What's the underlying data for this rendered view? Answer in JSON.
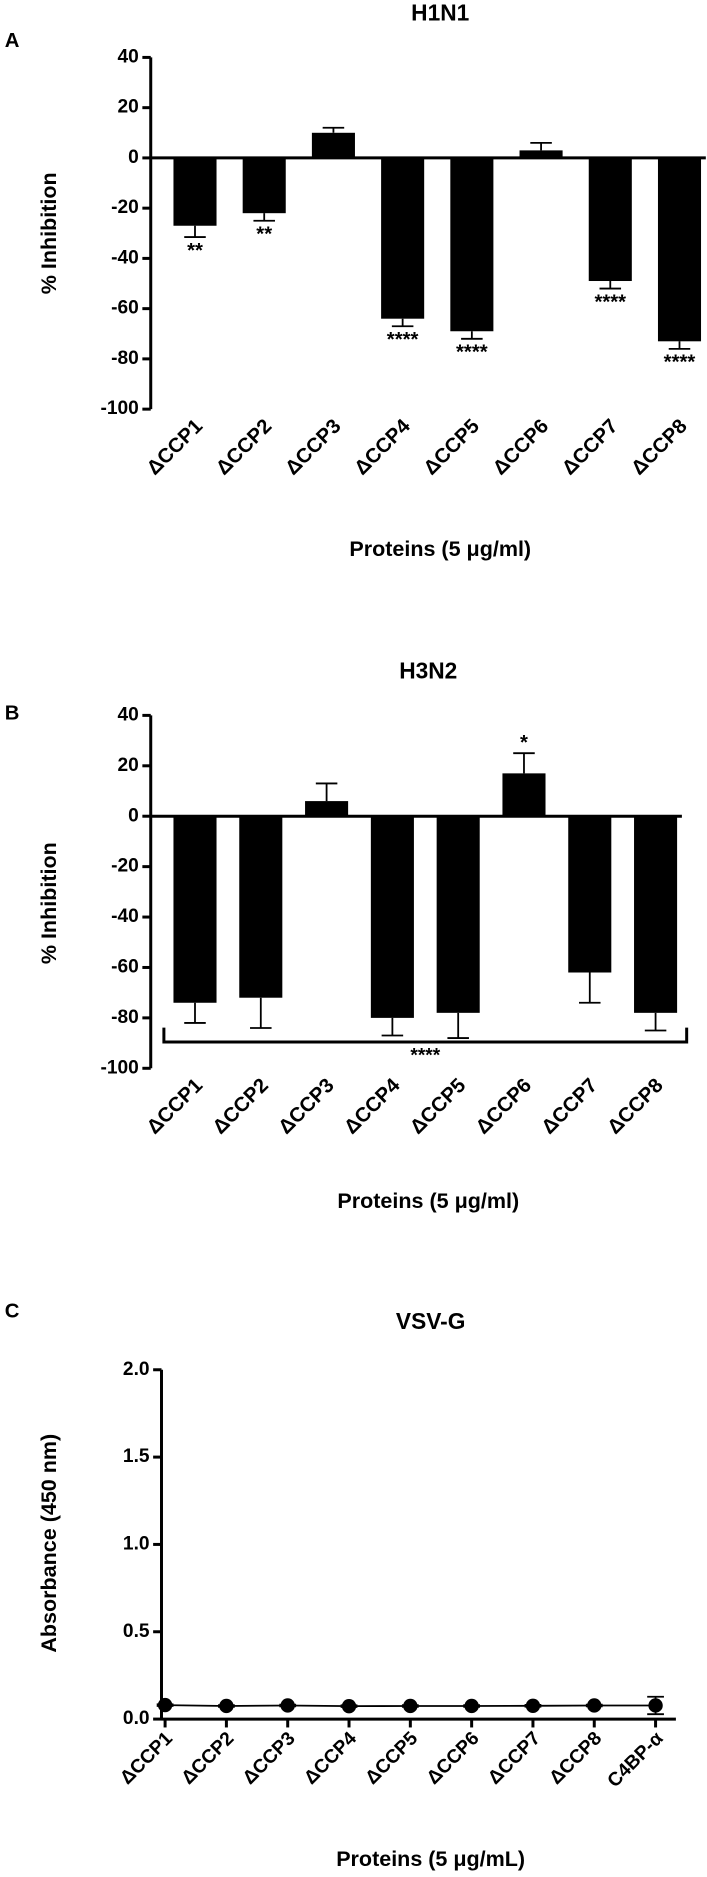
{
  "chart_data": [
    {
      "type": "bar",
      "panel_label": "A",
      "title": "H1N1",
      "categories": [
        "ΔCCP1",
        "ΔCCP2",
        "ΔCCP3",
        "ΔCCP4",
        "ΔCCP5",
        "ΔCCP6",
        "ΔCCP7",
        "ΔCCP8"
      ],
      "values": [
        -27,
        -22,
        10,
        -64,
        -69,
        3,
        -49,
        -73
      ],
      "errors": [
        4.5,
        3,
        2,
        3,
        3,
        3,
        3,
        3
      ],
      "annotations": [
        "**",
        "**",
        null,
        "****",
        "****",
        null,
        "****",
        "****"
      ],
      "color": "#000000",
      "ylim": [
        -100,
        40
      ],
      "yticks": [
        -100,
        -80,
        -60,
        -40,
        -20,
        0,
        20,
        40
      ],
      "xlabel": "Proteins (5 μg/ml)",
      "ylabel": "% Inhibition"
    },
    {
      "type": "bar",
      "panel_label": "B",
      "title": "H3N2",
      "categories": [
        "ΔCCP1",
        "ΔCCP2",
        "ΔCCP3",
        "ΔCCP4",
        "ΔCCP5",
        "ΔCCP6",
        "ΔCCP7",
        "ΔCCP8"
      ],
      "values": [
        -74,
        -72,
        6,
        -80,
        -78,
        17,
        -62,
        -78
      ],
      "errors": [
        8,
        12,
        7,
        7,
        10,
        8,
        12,
        7
      ],
      "annotations": [
        null,
        null,
        null,
        null,
        null,
        "*",
        null,
        null
      ],
      "bracket_label": "****",
      "color": "#000000",
      "ylim": [
        -100,
        40
      ],
      "yticks": [
        -100,
        -80,
        -60,
        -40,
        -20,
        0,
        20,
        40
      ],
      "xlabel": "Proteins (5 μg/ml)",
      "ylabel": "% Inhibition"
    },
    {
      "type": "line",
      "panel_label": "C",
      "title": "VSV-G",
      "categories": [
        "ΔCCP1",
        "ΔCCP2",
        "ΔCCP3",
        "ΔCCP4",
        "ΔCCP5",
        "ΔCCP6",
        "ΔCCP7",
        "ΔCCP8",
        "C4BP-α"
      ],
      "values": [
        0.08,
        0.075,
        0.078,
        0.074,
        0.075,
        0.075,
        0.076,
        0.078,
        0.078
      ],
      "errors": [
        0.005,
        0.005,
        0.005,
        0.005,
        0.005,
        0.005,
        0.005,
        0.005,
        0.05
      ],
      "color": "#000000",
      "ylim": [
        0,
        2
      ],
      "yticks": [
        {
          "value": 0,
          "label": "0.0"
        },
        {
          "value": 0.5,
          "label": "0.5"
        },
        {
          "value": 1,
          "label": "1.0"
        },
        {
          "value": 1.5,
          "label": "1.5"
        },
        {
          "value": 2,
          "label": "2.0"
        }
      ],
      "xlabel": "Proteins (5 μg/mL)",
      "ylabel": "Absorbance (450 nm)"
    }
  ]
}
